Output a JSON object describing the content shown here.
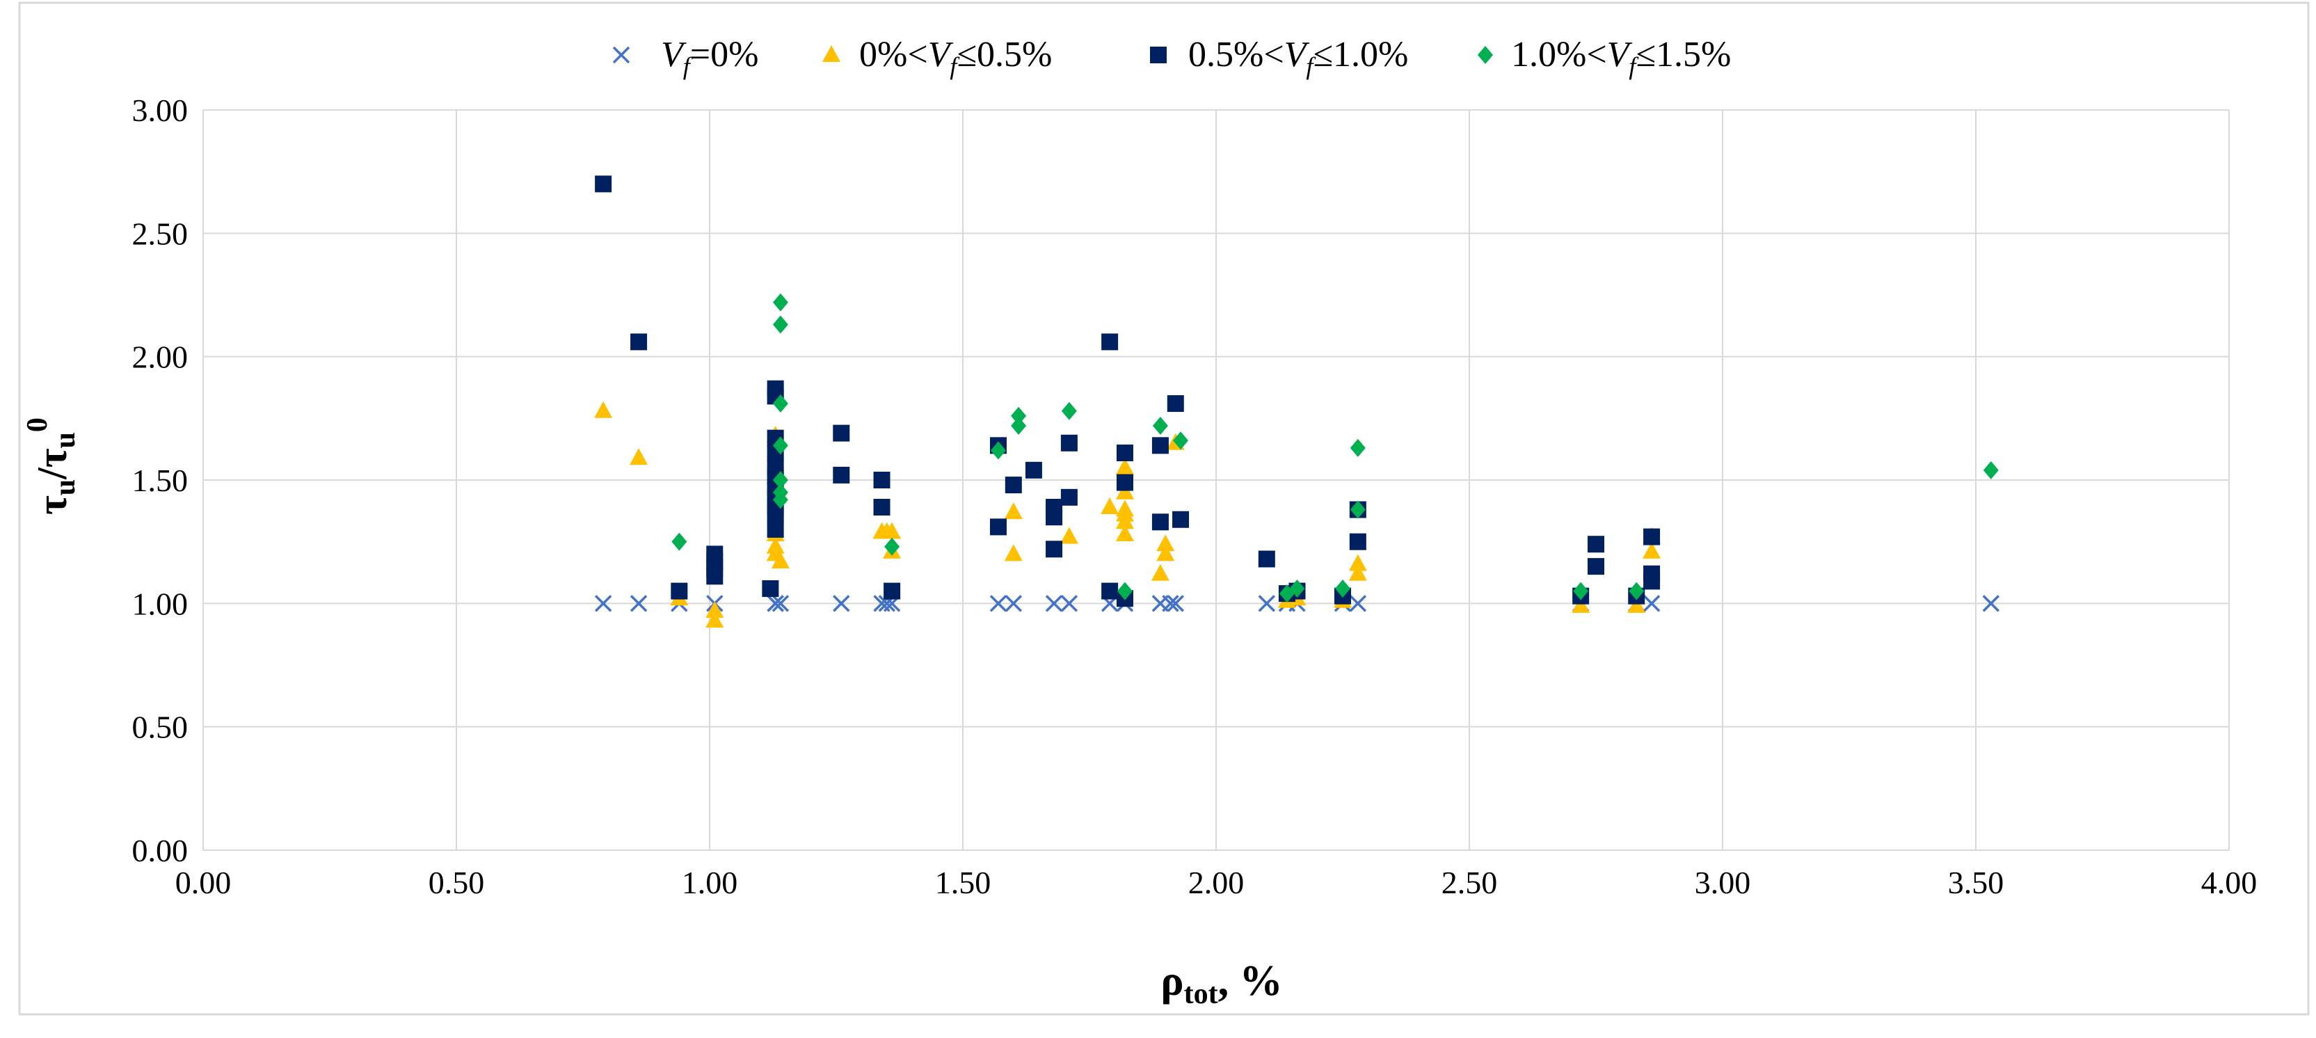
{
  "chart_data": {
    "type": "scatter",
    "title": "",
    "xlabel": {
      "main": "ρ",
      "sub": "tot",
      "suffix": ", %"
    },
    "ylabel": {
      "base1": "τ",
      "sub1": "u",
      "slash": "/",
      "base2": "τ",
      "sub2": "u",
      "sup2": "0"
    },
    "xlim": [
      0,
      4
    ],
    "ylim": [
      0,
      3
    ],
    "x_ticks": [
      "0.00",
      "0.50",
      "1.00",
      "1.50",
      "2.00",
      "2.50",
      "3.00",
      "3.50",
      "4.00"
    ],
    "y_ticks": [
      "0.00",
      "0.50",
      "1.00",
      "1.50",
      "2.00",
      "2.50",
      "3.00"
    ],
    "grid": true,
    "legend_position": "top",
    "series": [
      {
        "name": "Vf=0%",
        "label_parts": [
          "V",
          "f",
          "=0%"
        ],
        "marker": "x",
        "color": "#4472C4",
        "points": [
          [
            0.79,
            1.0
          ],
          [
            0.86,
            1.0
          ],
          [
            0.94,
            1.0
          ],
          [
            1.01,
            1.0
          ],
          [
            1.13,
            1.0
          ],
          [
            1.14,
            1.0
          ],
          [
            1.13,
            1.0
          ],
          [
            1.26,
            1.0
          ],
          [
            1.34,
            1.0
          ],
          [
            1.36,
            1.0
          ],
          [
            1.35,
            1.0
          ],
          [
            1.57,
            1.0
          ],
          [
            1.6,
            1.0
          ],
          [
            1.68,
            1.0
          ],
          [
            1.71,
            1.0
          ],
          [
            1.79,
            1.0
          ],
          [
            1.82,
            1.0
          ],
          [
            1.89,
            1.0
          ],
          [
            1.91,
            1.0
          ],
          [
            1.92,
            1.0
          ],
          [
            2.1,
            1.0
          ],
          [
            2.14,
            1.0
          ],
          [
            2.16,
            1.0
          ],
          [
            2.25,
            1.0
          ],
          [
            2.28,
            1.0
          ],
          [
            2.72,
            1.0
          ],
          [
            2.83,
            1.0
          ],
          [
            2.86,
            1.0
          ],
          [
            3.53,
            1.0
          ]
        ]
      },
      {
        "name": "0%<Vf≤0.5%",
        "label_parts": [
          "0%<V",
          "f",
          "≤0.5%"
        ],
        "marker": "triangle",
        "color": "#FFC000",
        "points": [
          [
            0.79,
            1.78
          ],
          [
            0.86,
            1.59
          ],
          [
            0.94,
            1.02
          ],
          [
            1.01,
            0.97
          ],
          [
            1.01,
            0.93
          ],
          [
            1.13,
            1.62
          ],
          [
            1.13,
            1.68
          ],
          [
            1.13,
            1.23
          ],
          [
            1.13,
            1.2
          ],
          [
            1.14,
            1.17
          ],
          [
            1.13,
            1.28
          ],
          [
            1.35,
            1.29
          ],
          [
            1.34,
            1.29
          ],
          [
            1.36,
            1.21
          ],
          [
            1.36,
            1.29
          ],
          [
            1.6,
            1.37
          ],
          [
            1.6,
            1.2
          ],
          [
            1.71,
            1.27
          ],
          [
            1.79,
            1.39
          ],
          [
            1.82,
            1.55
          ],
          [
            1.82,
            1.45
          ],
          [
            1.82,
            1.38
          ],
          [
            1.82,
            1.33
          ],
          [
            1.82,
            1.28
          ],
          [
            1.82,
            1.36
          ],
          [
            1.89,
            1.12
          ],
          [
            1.9,
            1.2
          ],
          [
            1.9,
            1.24
          ],
          [
            1.92,
            1.65
          ],
          [
            2.14,
            1.01
          ],
          [
            2.16,
            1.02
          ],
          [
            2.25,
            1.01
          ],
          [
            2.28,
            1.12
          ],
          [
            2.28,
            1.16
          ],
          [
            2.72,
            0.99
          ],
          [
            2.83,
            0.99
          ],
          [
            2.86,
            1.21
          ],
          [
            2.86,
            1.27
          ]
        ]
      },
      {
        "name": "0.5%<Vf≤1.0%",
        "label_parts": [
          "0.5%<V",
          "f",
          "≤1.0%"
        ],
        "marker": "square",
        "color": "#002060",
        "points": [
          [
            0.79,
            2.7
          ],
          [
            0.86,
            2.06
          ],
          [
            0.94,
            1.05
          ],
          [
            1.01,
            1.2
          ],
          [
            1.01,
            1.17
          ],
          [
            1.01,
            1.14
          ],
          [
            1.01,
            1.11
          ],
          [
            1.13,
            1.87
          ],
          [
            1.13,
            1.84
          ],
          [
            1.13,
            1.67
          ],
          [
            1.13,
            1.61
          ],
          [
            1.13,
            1.55
          ],
          [
            1.13,
            1.51
          ],
          [
            1.13,
            1.47
          ],
          [
            1.13,
            1.43
          ],
          [
            1.13,
            1.39
          ],
          [
            1.13,
            1.36
          ],
          [
            1.13,
            1.3
          ],
          [
            1.12,
            1.06
          ],
          [
            1.26,
            1.69
          ],
          [
            1.26,
            1.52
          ],
          [
            1.34,
            1.5
          ],
          [
            1.34,
            1.39
          ],
          [
            1.36,
            1.05
          ],
          [
            1.57,
            1.64
          ],
          [
            1.57,
            1.31
          ],
          [
            1.6,
            1.48
          ],
          [
            1.64,
            1.54
          ],
          [
            1.68,
            1.39
          ],
          [
            1.68,
            1.35
          ],
          [
            1.68,
            1.22
          ],
          [
            1.71,
            1.65
          ],
          [
            1.71,
            1.43
          ],
          [
            1.79,
            2.06
          ],
          [
            1.79,
            1.05
          ],
          [
            1.82,
            1.61
          ],
          [
            1.82,
            1.49
          ],
          [
            1.82,
            1.02
          ],
          [
            1.89,
            1.64
          ],
          [
            1.89,
            1.33
          ],
          [
            1.92,
            1.81
          ],
          [
            1.93,
            1.34
          ],
          [
            2.1,
            1.18
          ],
          [
            2.14,
            1.04
          ],
          [
            2.16,
            1.05
          ],
          [
            2.25,
            1.03
          ],
          [
            2.28,
            1.38
          ],
          [
            2.28,
            1.25
          ],
          [
            2.72,
            1.03
          ],
          [
            2.75,
            1.24
          ],
          [
            2.75,
            1.15
          ],
          [
            2.83,
            1.03
          ],
          [
            2.86,
            1.27
          ],
          [
            2.86,
            1.12
          ],
          [
            2.86,
            1.09
          ]
        ]
      },
      {
        "name": "1.0%<Vf≤1.5%",
        "label_parts": [
          "1.0%<V",
          "f",
          "≤1.5%"
        ],
        "marker": "diamond",
        "color": "#00B050",
        "points": [
          [
            0.94,
            1.25
          ],
          [
            1.14,
            2.22
          ],
          [
            1.14,
            2.13
          ],
          [
            1.14,
            1.81
          ],
          [
            1.14,
            1.64
          ],
          [
            1.14,
            1.5
          ],
          [
            1.14,
            1.45
          ],
          [
            1.14,
            1.42
          ],
          [
            1.36,
            1.23
          ],
          [
            1.57,
            1.62
          ],
          [
            1.61,
            1.76
          ],
          [
            1.61,
            1.72
          ],
          [
            1.71,
            1.78
          ],
          [
            1.82,
            1.05
          ],
          [
            1.89,
            1.72
          ],
          [
            1.93,
            1.66
          ],
          [
            2.14,
            1.04
          ],
          [
            2.16,
            1.06
          ],
          [
            2.25,
            1.06
          ],
          [
            2.28,
            1.63
          ],
          [
            2.28,
            1.38
          ],
          [
            2.72,
            1.05
          ],
          [
            2.83,
            1.05
          ],
          [
            3.53,
            1.54
          ]
        ]
      }
    ]
  }
}
